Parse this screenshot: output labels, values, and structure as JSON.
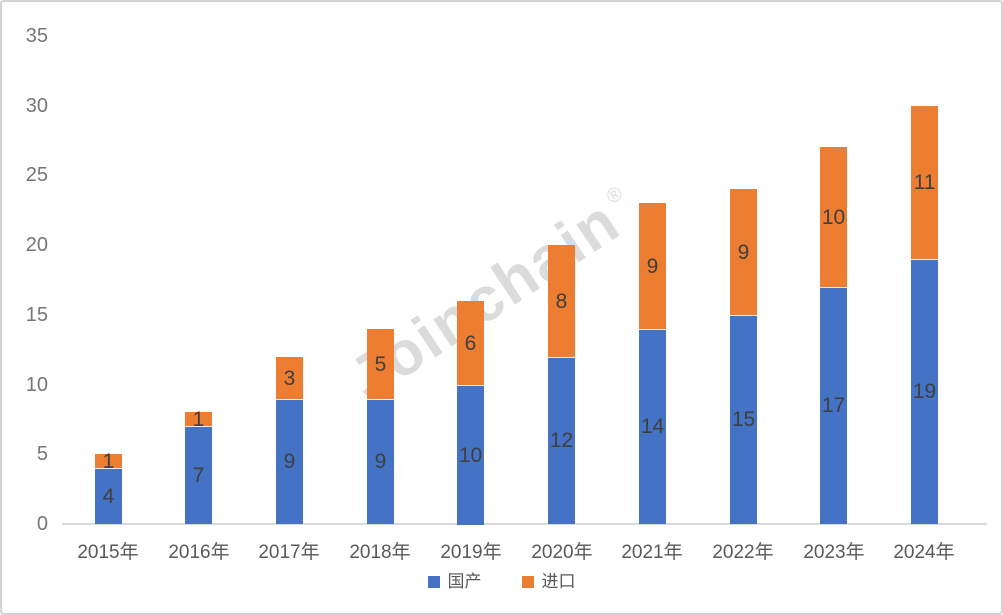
{
  "chart_data": {
    "type": "bar",
    "stacked": true,
    "title": "",
    "xlabel": "",
    "ylabel": "",
    "categories": [
      "2015年",
      "2016年",
      "2017年",
      "2018年",
      "2019年",
      "2020年",
      "2021年",
      "2022年",
      "2023年",
      "2024年"
    ],
    "series": [
      {
        "key": "domestic",
        "name": "国产",
        "color": "#4472C4",
        "values": [
          4,
          7,
          9,
          9,
          10,
          12,
          14,
          15,
          17,
          19
        ]
      },
      {
        "key": "import",
        "name": "进口",
        "color": "#ED7D31",
        "values": [
          1,
          1,
          3,
          5,
          6,
          8,
          9,
          9,
          10,
          11
        ]
      }
    ],
    "totals": [
      5,
      8,
      12,
      14,
      16,
      20,
      23,
      24,
      27,
      30
    ],
    "ylim": [
      0,
      35
    ],
    "yticks": [
      0,
      5,
      10,
      15,
      20,
      25,
      30,
      35
    ],
    "grid": false,
    "legend_position": "bottom",
    "data_labels": "center"
  },
  "watermark": {
    "text": "Joinchain",
    "registered_mark": "®"
  },
  "colors": {
    "domestic": "#4472C4",
    "import": "#ED7D31",
    "axis_line": "#D9D9D9",
    "tick_label": "#767676",
    "category_label": "#595959",
    "data_label": "#3F3F3F",
    "border": "#D2D2D2",
    "background": "#FFFFFF"
  }
}
